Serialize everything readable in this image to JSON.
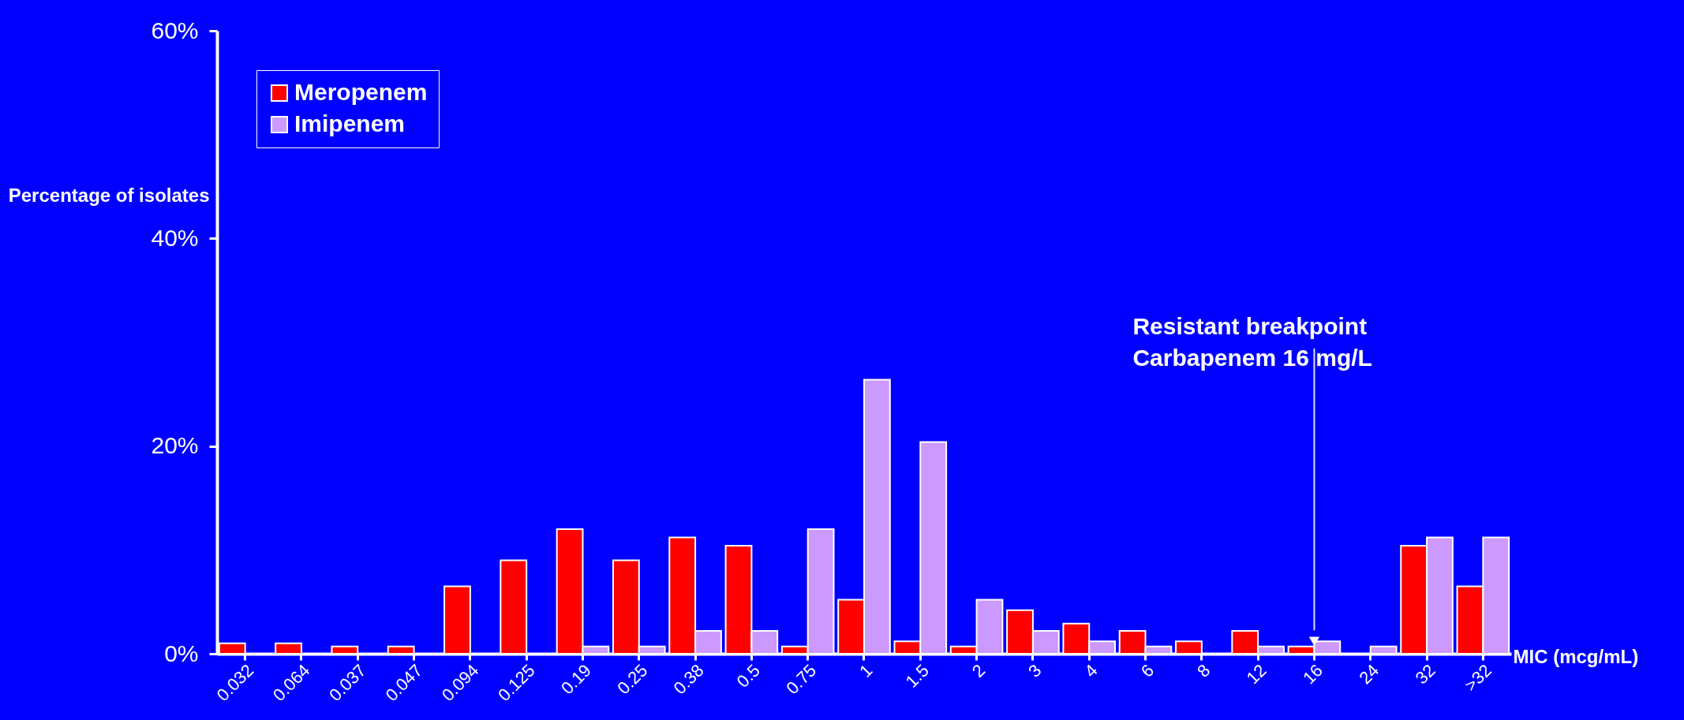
{
  "chart_data": {
    "type": "bar",
    "xlabel": "MIC (mcg/mL)",
    "ylabel": "Percentage of isolates",
    "categories": [
      "0.032",
      "0.064",
      "0.037",
      "0.047",
      "0.094",
      "0.125",
      "0.19",
      "0.25",
      "0.38",
      "0.5",
      "0.75",
      "1",
      "1.5",
      "2",
      "3",
      "4",
      "6",
      "8",
      "12",
      "16",
      "24",
      "32",
      ">32"
    ],
    "series": [
      {
        "name": "Meropenem",
        "color": "#ff0000",
        "values": [
          1,
          1,
          0.7,
          0.7,
          6.5,
          9,
          12,
          9,
          11.2,
          10.4,
          0.7,
          5.2,
          1.2,
          0.7,
          4.2,
          2.9,
          2.2,
          1.2,
          2.2,
          0.7,
          null,
          10.4,
          6.5
        ]
      },
      {
        "name": "Imipenem",
        "color": "#cc99ff",
        "values": [
          null,
          null,
          null,
          null,
          null,
          null,
          0.7,
          0.7,
          2.2,
          2.2,
          12,
          26.4,
          20.4,
          5.2,
          2.2,
          1.2,
          0.7,
          null,
          0.7,
          1.2,
          0.7,
          11.2,
          11.2
        ]
      }
    ],
    "ylim": [
      0,
      60
    ],
    "yticks": [
      {
        "value": 0,
        "label": "0%"
      },
      {
        "value": 20,
        "label": "20%"
      },
      {
        "value": 40,
        "label": "40%"
      },
      {
        "value": 60,
        "label": "60%"
      }
    ],
    "ref_lines": [
      {
        "axis": "x",
        "value": "16",
        "label": "Resistant breakpoint\nCarbapenem 16 mg/L"
      }
    ],
    "legend": "top left"
  }
}
